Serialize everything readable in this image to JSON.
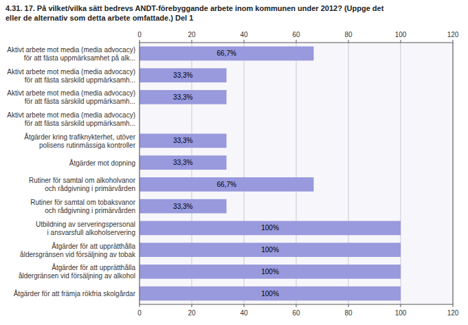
{
  "chart_data": {
    "type": "bar",
    "orientation": "horizontal",
    "title": "4.31. 17. På vilket/vilka sätt bedrevs ANDT-förebyggande arbete inom kommunen under 2012? (Uppge det\neller de alternativ som detta arbete omfattade.) Del 1",
    "categories": [
      "Aktivt arbete mot media (media advocacy)\nför att fästa uppmärksamhet på alk...",
      "Aktivt arbete mot media (media advocacy)\nför att fästa särskild uppmärksamh...",
      "Aktivt arbete mot media (media advocacy)\nför att fästa särskild uppmärksamh...",
      "Aktivt arbete mot media (media advocacy)\nför att fästa särskild uppmärksamh...",
      "Åtgärder kring trafiknykterhet, utöver\npolisens rutinmässiga kontroller",
      "Åtgärder mot dopning",
      "Rutiner för samtal om alkoholvanor\noch rådgivning i primärvården",
      "Rutiner för samtal om tobaksvanor\noch rådgivning i primärvården",
      "Utbildning av serveringspersonal\ni ansvarsfull alkoholservering",
      "Åtgärder för att upprätthålla\nåldersgränsen vid försäljning av tobak",
      "Åtgärder för att upprätthålla\nåldergränsen vid försäljning av alkohol",
      "Åtgärder för att främja rökfria skolgårdar"
    ],
    "values": [
      66.7,
      33.3,
      33.3,
      0.0,
      33.3,
      33.3,
      66.7,
      33.3,
      100.0,
      100.0,
      100.0,
      100.0
    ],
    "value_labels": [
      "66,7%",
      "33,3%",
      "33,3%",
      null,
      "33,3%",
      "33,3%",
      "66,7%",
      "33,3%",
      "100%",
      "100%",
      "100%",
      "100%"
    ],
    "data_labels": true,
    "color": "#9999dd",
    "xlim": [
      0,
      120
    ],
    "xticks": [
      0,
      20,
      40,
      60,
      80,
      100,
      120
    ],
    "grid": true
  }
}
